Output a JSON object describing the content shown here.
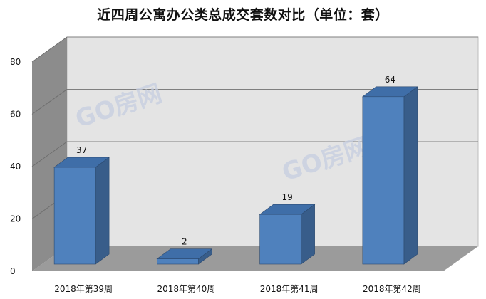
{
  "chart_data": {
    "type": "bar",
    "title": "近四周公寓办公类总成交套数对比（单位：套）",
    "categories": [
      "2018年第39周",
      "2018年第40周",
      "2018年第41周",
      "2018年第42周"
    ],
    "values": [
      37,
      2,
      19,
      64
    ],
    "ylim": [
      0,
      80
    ],
    "yticks": [
      0,
      20,
      40,
      60,
      80
    ],
    "grid": true,
    "legend": "none",
    "bar_color": "#4F81BD",
    "bar_side_color": "#385D8A",
    "bar_top_color": "#3F6EA8"
  },
  "watermark": "GO房网",
  "colors": {
    "back_wall": "#E4E4E4",
    "side_wall": "#8C8C8C",
    "floor": "#9B9B9B",
    "gridline": "#7F7F7F"
  }
}
